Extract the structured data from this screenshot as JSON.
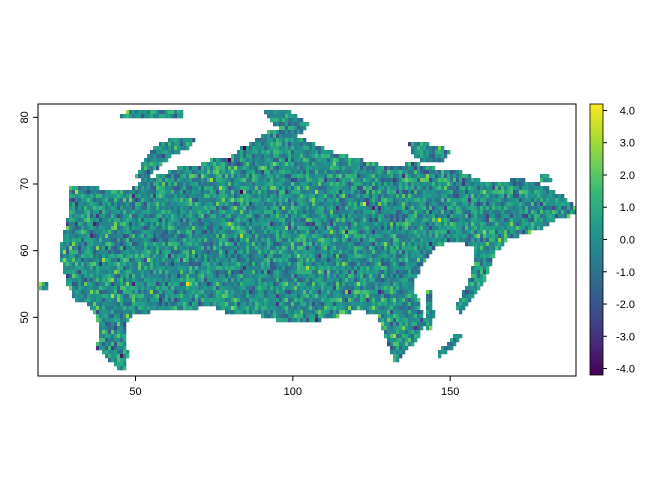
{
  "chart_data": {
    "type": "heatmap",
    "title": "",
    "xlabel": "",
    "ylabel": "",
    "xlim": [
      19,
      190
    ],
    "ylim": [
      41.2,
      82
    ],
    "x_ticks": [
      50,
      100,
      150
    ],
    "x_tick_labels": [
      "50",
      "100",
      "150"
    ],
    "y_ticks": [
      50,
      60,
      70,
      80
    ],
    "y_tick_labels": [
      "50",
      "60",
      "70",
      "80"
    ],
    "grid": false,
    "colorbar": {
      "placement": "right",
      "range": [
        -4.2,
        4.2
      ],
      "ticks": [
        4,
        3,
        2,
        1,
        0,
        -1,
        -2,
        -3,
        -4
      ],
      "tick_labels": [
        "4.0",
        "3.0",
        "2.0",
        "1.0",
        "0.0",
        "-1.0",
        "-2.0",
        "-3.0",
        "-4.0"
      ],
      "palette": "viridis",
      "colors": [
        "#440154",
        "#482878",
        "#3e4a89",
        "#31688e",
        "#26828e",
        "#1f9e89",
        "#35b779",
        "#6ece58",
        "#b5de2b",
        "#fde725"
      ]
    },
    "description_of_values": "Random noise field with values roughly in [-4, 4], mean near 0, masked to the land area of Russia"
  }
}
